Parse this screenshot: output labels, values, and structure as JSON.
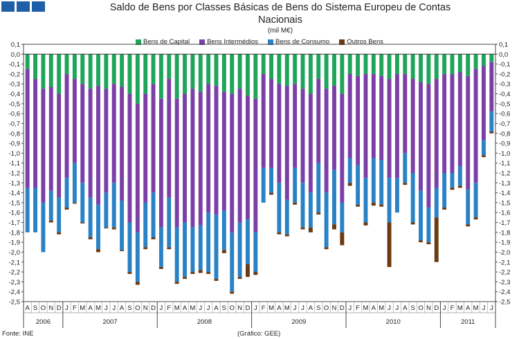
{
  "chart_data": {
    "type": "bar",
    "stacked": true,
    "title_line1": "Saldo de Bens por Classes Básicas de Bens do Sistema Europeu de Contas",
    "title_line2": "Nacionais",
    "unit": "(mil M€)",
    "ylim": [
      -2.5,
      0.1
    ],
    "y_ticks": [
      "0,1",
      "0,0",
      "-0,1",
      "-0,2",
      "-0,3",
      "-0,4",
      "-0,5",
      "-0,6",
      "-0,7",
      "-0,8",
      "-0,9",
      "-1,0",
      "-1,1",
      "-1,2",
      "-1,3",
      "-1,4",
      "-1,5",
      "-1,6",
      "-1,7",
      "-1,8",
      "-1,9",
      "-2,0",
      "-2,1",
      "-2,2",
      "-2,3",
      "-2,4",
      "-2,5"
    ],
    "legend_position": "top",
    "grid": false,
    "month_labels": [
      "A",
      "S",
      "O",
      "N",
      "D",
      "J",
      "F",
      "M",
      "A",
      "M",
      "J",
      "J",
      "A",
      "S",
      "O",
      "N",
      "D",
      "J",
      "F",
      "M",
      "A",
      "M",
      "J",
      "J",
      "A",
      "S",
      "O",
      "N",
      "D",
      "J",
      "F",
      "M",
      "A",
      "M",
      "J",
      "J",
      "A",
      "S",
      "O",
      "N",
      "D",
      "J",
      "F",
      "M",
      "A",
      "M",
      "J",
      "J",
      "A",
      "S",
      "O",
      "N",
      "D",
      "J",
      "F",
      "M",
      "A",
      "M",
      "J",
      "J"
    ],
    "year_labels": [
      "2006",
      "2007",
      "2008",
      "2009",
      "2010",
      "2011"
    ],
    "series": [
      {
        "name": "Bens de Capital",
        "color": "#1ea55a",
        "values": [
          -0.15,
          -0.25,
          -0.35,
          -0.33,
          -0.4,
          -0.2,
          -0.25,
          -0.3,
          -0.35,
          -0.32,
          -0.35,
          -0.3,
          -0.33,
          -0.4,
          -0.5,
          -0.4,
          -0.3,
          -0.45,
          -0.25,
          -0.45,
          -0.4,
          -0.35,
          -0.38,
          -0.3,
          -0.32,
          -0.38,
          -0.4,
          -0.35,
          -0.42,
          -0.45,
          -0.2,
          -0.25,
          -0.3,
          -0.32,
          -0.3,
          -0.35,
          -0.4,
          -0.25,
          -0.35,
          -0.32,
          -0.4,
          -0.2,
          -0.22,
          -0.2,
          -0.2,
          -0.22,
          -0.25,
          -0.2,
          -0.2,
          -0.25,
          -0.28,
          -0.3,
          -0.25,
          -0.2,
          -0.2,
          -0.18,
          -0.22,
          -0.15,
          -0.12,
          -0.08
        ]
      },
      {
        "name": "Bens Intermédios",
        "color": "#7b3fa8",
        "values": [
          -1.2,
          -1.1,
          -1.15,
          -1.05,
          -1.05,
          -1.05,
          -0.85,
          -1.0,
          -1.1,
          -1.2,
          -1.05,
          -1.0,
          -1.15,
          -1.3,
          -1.3,
          -1.1,
          -1.1,
          -1.3,
          -1.2,
          -1.3,
          -1.3,
          -1.4,
          -1.35,
          -1.3,
          -1.3,
          -1.2,
          -1.4,
          -1.35,
          -1.25,
          -1.35,
          -0.95,
          -0.9,
          -1.0,
          -1.15,
          -0.85,
          -0.95,
          -1.0,
          -0.85,
          -1.05,
          -0.85,
          -1.1,
          -0.85,
          -0.9,
          -1.05,
          -0.85,
          -0.85,
          -1.0,
          -1.05,
          -0.8,
          -0.95,
          -1.1,
          -1.25,
          -1.1,
          -1.0,
          -1.0,
          -0.95,
          -1.15,
          -1.15,
          -0.75,
          -0.5
        ]
      },
      {
        "name": "Bens de Consumo",
        "color": "#2a82c6",
        "values": [
          -0.45,
          -0.45,
          -0.5,
          -0.3,
          -0.35,
          -0.3,
          -0.4,
          -0.4,
          -0.4,
          -0.45,
          -0.35,
          -0.45,
          -0.5,
          -0.5,
          -0.5,
          -0.45,
          -0.45,
          -0.4,
          -0.5,
          -0.55,
          -0.55,
          -0.45,
          -0.45,
          -0.6,
          -0.65,
          -0.4,
          -0.6,
          -0.55,
          -0.45,
          -0.4,
          -0.35,
          -0.25,
          -0.5,
          -0.35,
          -0.35,
          -0.45,
          -0.35,
          -0.5,
          -0.55,
          -0.55,
          -0.3,
          -0.25,
          -0.4,
          -0.45,
          -0.45,
          -0.45,
          -0.45,
          -0.35,
          -0.3,
          -0.5,
          -0.5,
          -0.35,
          -0.3,
          -0.35,
          -0.15,
          -0.2,
          -0.35,
          -0.35,
          -0.15,
          -0.2
        ]
      },
      {
        "name": "Outros Bens",
        "color": "#6b3a12",
        "values": [
          0,
          0,
          0,
          -0.02,
          -0.02,
          -0.02,
          -0.01,
          -0.01,
          -0.02,
          -0.03,
          -0.01,
          -0.02,
          -0.01,
          -0.02,
          -0.03,
          -0.02,
          -0.02,
          -0.02,
          -0.02,
          -0.02,
          -0.02,
          -0.02,
          -0.03,
          -0.02,
          -0.02,
          -0.03,
          -0.02,
          -0.02,
          -0.13,
          -0.03,
          0,
          -0.02,
          -0.02,
          -0.02,
          -0.02,
          -0.02,
          -0.05,
          -0.02,
          -0.02,
          -0.05,
          -0.13,
          -0.03,
          -0.02,
          -0.03,
          -0.03,
          -0.02,
          -0.45,
          0,
          -0.02,
          -0.02,
          -0.02,
          -0.02,
          -0.45,
          -0.02,
          -0.02,
          -0.02,
          -0.02,
          -0.02,
          -0.02,
          -0.02
        ]
      }
    ]
  },
  "footer": {
    "source": "Fonte: INE",
    "credit": "(Gráfico: GEE)"
  }
}
